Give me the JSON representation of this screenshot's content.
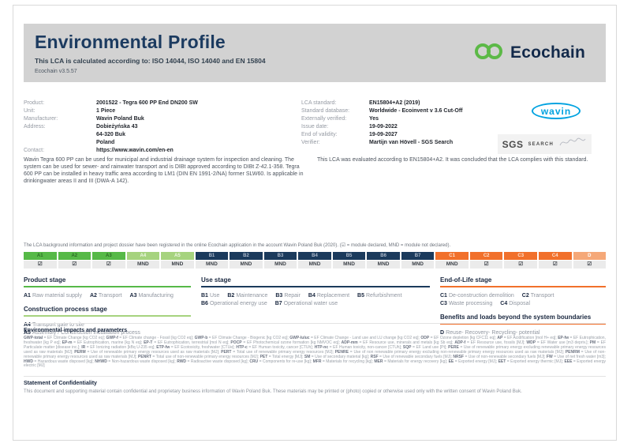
{
  "colors": {
    "navy": "#1b3a5c",
    "green": "#56b947",
    "light_green": "#a6d37e",
    "orange": "#f1702b",
    "light_orange": "#f5a878",
    "wavin_blue": "#00a2e0",
    "banner_gray": "#d2d2d2",
    "ecochain_green": "#5cb947"
  },
  "banner": {
    "title": "Environmental Profile",
    "subtitle": "This LCA is calculated according to: ISO 14044, ISO 14040 and EN 15804",
    "version": "Ecochain v3.5.57",
    "brand": "Ecochain"
  },
  "product_info": {
    "rows": [
      {
        "label": "Product:",
        "value": "2001522 - Tegra 600 PP End DN200 SW"
      },
      {
        "label": "Unit:",
        "value": "1 Piece"
      },
      {
        "label": "Manufacturer:",
        "value": "Wavin Poland Buk"
      },
      {
        "label": "Address:",
        "value": "Dobieżyńska 43\n64-320 Buk\nPoland"
      },
      {
        "label": "Contact:",
        "value": "https://www.wavin.com/en-en"
      }
    ],
    "description": "Wavin Tegra 600 PP can be used for municipal and industrial drainage system for inspection and cleaning. The system can be used for sewer- and rainwater transport and is DIBt approved according to DIBt Z-42.1-358. Tegra 600 PP can be installed in heavy traffic area according to LM1 (DIN EN 1991-2/NA) former SLW60. Is applicable in drinkingwater areas II and III (DWA-A 142)."
  },
  "lca_info": {
    "rows": [
      {
        "label": "LCA standard:",
        "value": "EN15804+A2 (2019)"
      },
      {
        "label": "Standard database:",
        "value": "Worldwide - Ecoinvent v 3.6 Cut-Off"
      },
      {
        "label": "Externally verified:",
        "value": "Yes"
      },
      {
        "label": "Issue date:",
        "value": "19-09-2022"
      },
      {
        "label": "End of validity:",
        "value": "19-09-2027"
      },
      {
        "label": "Verifier:",
        "value": "Martijn van Hövell - SGS Search"
      }
    ],
    "evaluation": "This LCA was evaluated according to EN15804+A2. It was concluded that the LCA complies with this standard."
  },
  "logos": {
    "wavin": "wavin",
    "sgs": "SGS",
    "search": "SEARCH"
  },
  "registration_note": "The LCA background information and project dossier have been registered in the online Ecochain application in the account Wavin Poland Buk (2020). (☑ = module declared, MND = module not declared).",
  "modules": {
    "items": [
      {
        "code": "A1",
        "status": "☑"
      },
      {
        "code": "A2",
        "status": "☑"
      },
      {
        "code": "A3",
        "status": "☑"
      },
      {
        "code": "A4",
        "status": "MND"
      },
      {
        "code": "A5",
        "status": "MND"
      },
      {
        "code": "B1",
        "status": "MND"
      },
      {
        "code": "B2",
        "status": "MND"
      },
      {
        "code": "B3",
        "status": "MND"
      },
      {
        "code": "B4",
        "status": "MND"
      },
      {
        "code": "B5",
        "status": "MND"
      },
      {
        "code": "B6",
        "status": "MND"
      },
      {
        "code": "B7",
        "status": "MND"
      },
      {
        "code": "C1",
        "status": "MND"
      },
      {
        "code": "C2",
        "status": "☑"
      },
      {
        "code": "C3",
        "status": "☑"
      },
      {
        "code": "C4",
        "status": "☑"
      },
      {
        "code": "D",
        "status": "☑"
      }
    ]
  },
  "stages": {
    "product": {
      "heading": "Product stage",
      "items": [
        {
          "code": "A1",
          "label": "Raw material supply"
        },
        {
          "code": "A2",
          "label": "Transport"
        },
        {
          "code": "A3",
          "label": "Manufacturing"
        }
      ]
    },
    "construction": {
      "heading": "Construction process stage",
      "items": [
        {
          "code": "A4",
          "label": "Transport gate to site"
        },
        {
          "code": "A5",
          "label": "Assembly / Construction installation process"
        }
      ]
    },
    "use": {
      "heading": "Use stage",
      "items": [
        {
          "code": "B1",
          "label": "Use"
        },
        {
          "code": "B2",
          "label": "Maintenance"
        },
        {
          "code": "B3",
          "label": "Repair"
        },
        {
          "code": "B4",
          "label": "Replacement"
        },
        {
          "code": "B5",
          "label": "Refurbishment"
        },
        {
          "code": "B6",
          "label": "Operational energy use"
        },
        {
          "code": "B7",
          "label": "Operational water use"
        }
      ]
    },
    "eol": {
      "heading": "End-of-Life stage",
      "items": [
        {
          "code": "C1",
          "label": "De-construction demolition"
        },
        {
          "code": "C2",
          "label": "Transport"
        },
        {
          "code": "C3",
          "label": "Waste processing"
        },
        {
          "code": "C4",
          "label": "Disposal"
        }
      ]
    },
    "benefits": {
      "heading": "Benefits and loads beyond the system boundaries",
      "items": [
        {
          "code": "D",
          "label": "Reuse- Recovery- Recycling- potential"
        }
      ]
    }
  },
  "impacts": {
    "heading": "Environmental impacts and parameters",
    "items": [
      {
        "c": "GWP-total",
        "d": "EF Climate Change [kg CO2 eq]"
      },
      {
        "c": "GWP-f",
        "d": "EF Climate change - Fossil [kg CO2 eq]"
      },
      {
        "c": "GWP-b",
        "d": "EF Climate Change - Biogenic [kg CO2 eq]"
      },
      {
        "c": "GWP-luluc",
        "d": "EF Climate Change - Land use and LU change [kg CO2 eq]"
      },
      {
        "c": "ODP",
        "d": "EF Ozone depletion [kg CFC11 eq]"
      },
      {
        "c": "AP",
        "d": "EF Acidification [mol H+ eq]"
      },
      {
        "c": "EP-fw",
        "d": "EF Eutrophication, freshwater [kg P eq]"
      },
      {
        "c": "EP-m",
        "d": "EF Eutrophication, marine [kg N eq]"
      },
      {
        "c": "EP-T",
        "d": "EF Eutrophication, terrestrial [mol N eq]"
      },
      {
        "c": "POCP",
        "d": "EF Photochemical ozone formation [kg NMVOC eq]"
      },
      {
        "c": "ADP-mm",
        "d": "EF Resource use, minerals and metals [kg Sb eq]"
      },
      {
        "c": "ADP-f",
        "d": "EF Resource use, fossils [MJ]"
      },
      {
        "c": "WDP",
        "d": "EF Water use [m3 depriv.]"
      },
      {
        "c": "PM",
        "d": "EF Particulate matter [disease inc.]"
      },
      {
        "c": "IR",
        "d": "EF Ionizing radiation [kBq U-235 eq]"
      },
      {
        "c": "ETP-fw",
        "d": "EF Ecotoxicity, freshwater [CTUe]"
      },
      {
        "c": "HTP-c",
        "d": "EF Human toxicity, cancer [CTUh]"
      },
      {
        "c": "HTP-nc",
        "d": "EF Human toxicity, non-cancer [CTUh]"
      },
      {
        "c": "SQP",
        "d": "EF Land use [Pt]"
      },
      {
        "c": "PERE",
        "d": "Use of renewable primary energy excluding renewable primary energy resources used as raw materials [MJ]"
      },
      {
        "c": "PERM",
        "d": "Use of renewable primary energy resources used as raw materials [MJ]"
      },
      {
        "c": "PERT",
        "d": "Total use of renewable primary energy resources [MJ]"
      },
      {
        "c": "PENRE",
        "d": "Use of non renewable primary energy excluding non-renewable primary energy resources used as raw materials [MJ]"
      },
      {
        "c": "PENRM",
        "d": "Use of non-renewable primary energy resources used as raw materials [MJ]"
      },
      {
        "c": "PENRT",
        "d": "Total use of non-renewable primary energy resources [MJ]"
      },
      {
        "c": "PET",
        "d": "Total energy [MJ]"
      },
      {
        "c": "SM",
        "d": "Use of secondary material [kg]"
      },
      {
        "c": "RSF",
        "d": "Use of renewable secondary fuels [MJ]"
      },
      {
        "c": "NRSF",
        "d": "Use of non-renewable secondary fuels [MJ]"
      },
      {
        "c": "FW",
        "d": "Use of net fresh water [m3]"
      },
      {
        "c": "HWD",
        "d": "Hazardous waste disposed [kg]"
      },
      {
        "c": "NHWD",
        "d": "Non-hazardous waste disposed [kg]"
      },
      {
        "c": "RWD",
        "d": "Radioactive waste disposed [kg]"
      },
      {
        "c": "CRU",
        "d": "Components for re-use [kg]"
      },
      {
        "c": "MFR",
        "d": "Materials for recycling [kg]"
      },
      {
        "c": "MER",
        "d": "Materials for energy recovery [kg]"
      },
      {
        "c": "EE",
        "d": "Exported energy [MJ]"
      },
      {
        "c": "EET",
        "d": "Exported energy thermic [MJ]"
      },
      {
        "c": "EEE",
        "d": "Exported energy electric [MJ]"
      }
    ]
  },
  "confidentiality": {
    "heading": "Statement of Confidentiality",
    "text": "This document and supporting material contain confidential and proprietary business information of Wavin Poland Buk. These materials may be printed or (photo) copied or otherwise used only with the written consent of Wavin Poland Buk."
  }
}
